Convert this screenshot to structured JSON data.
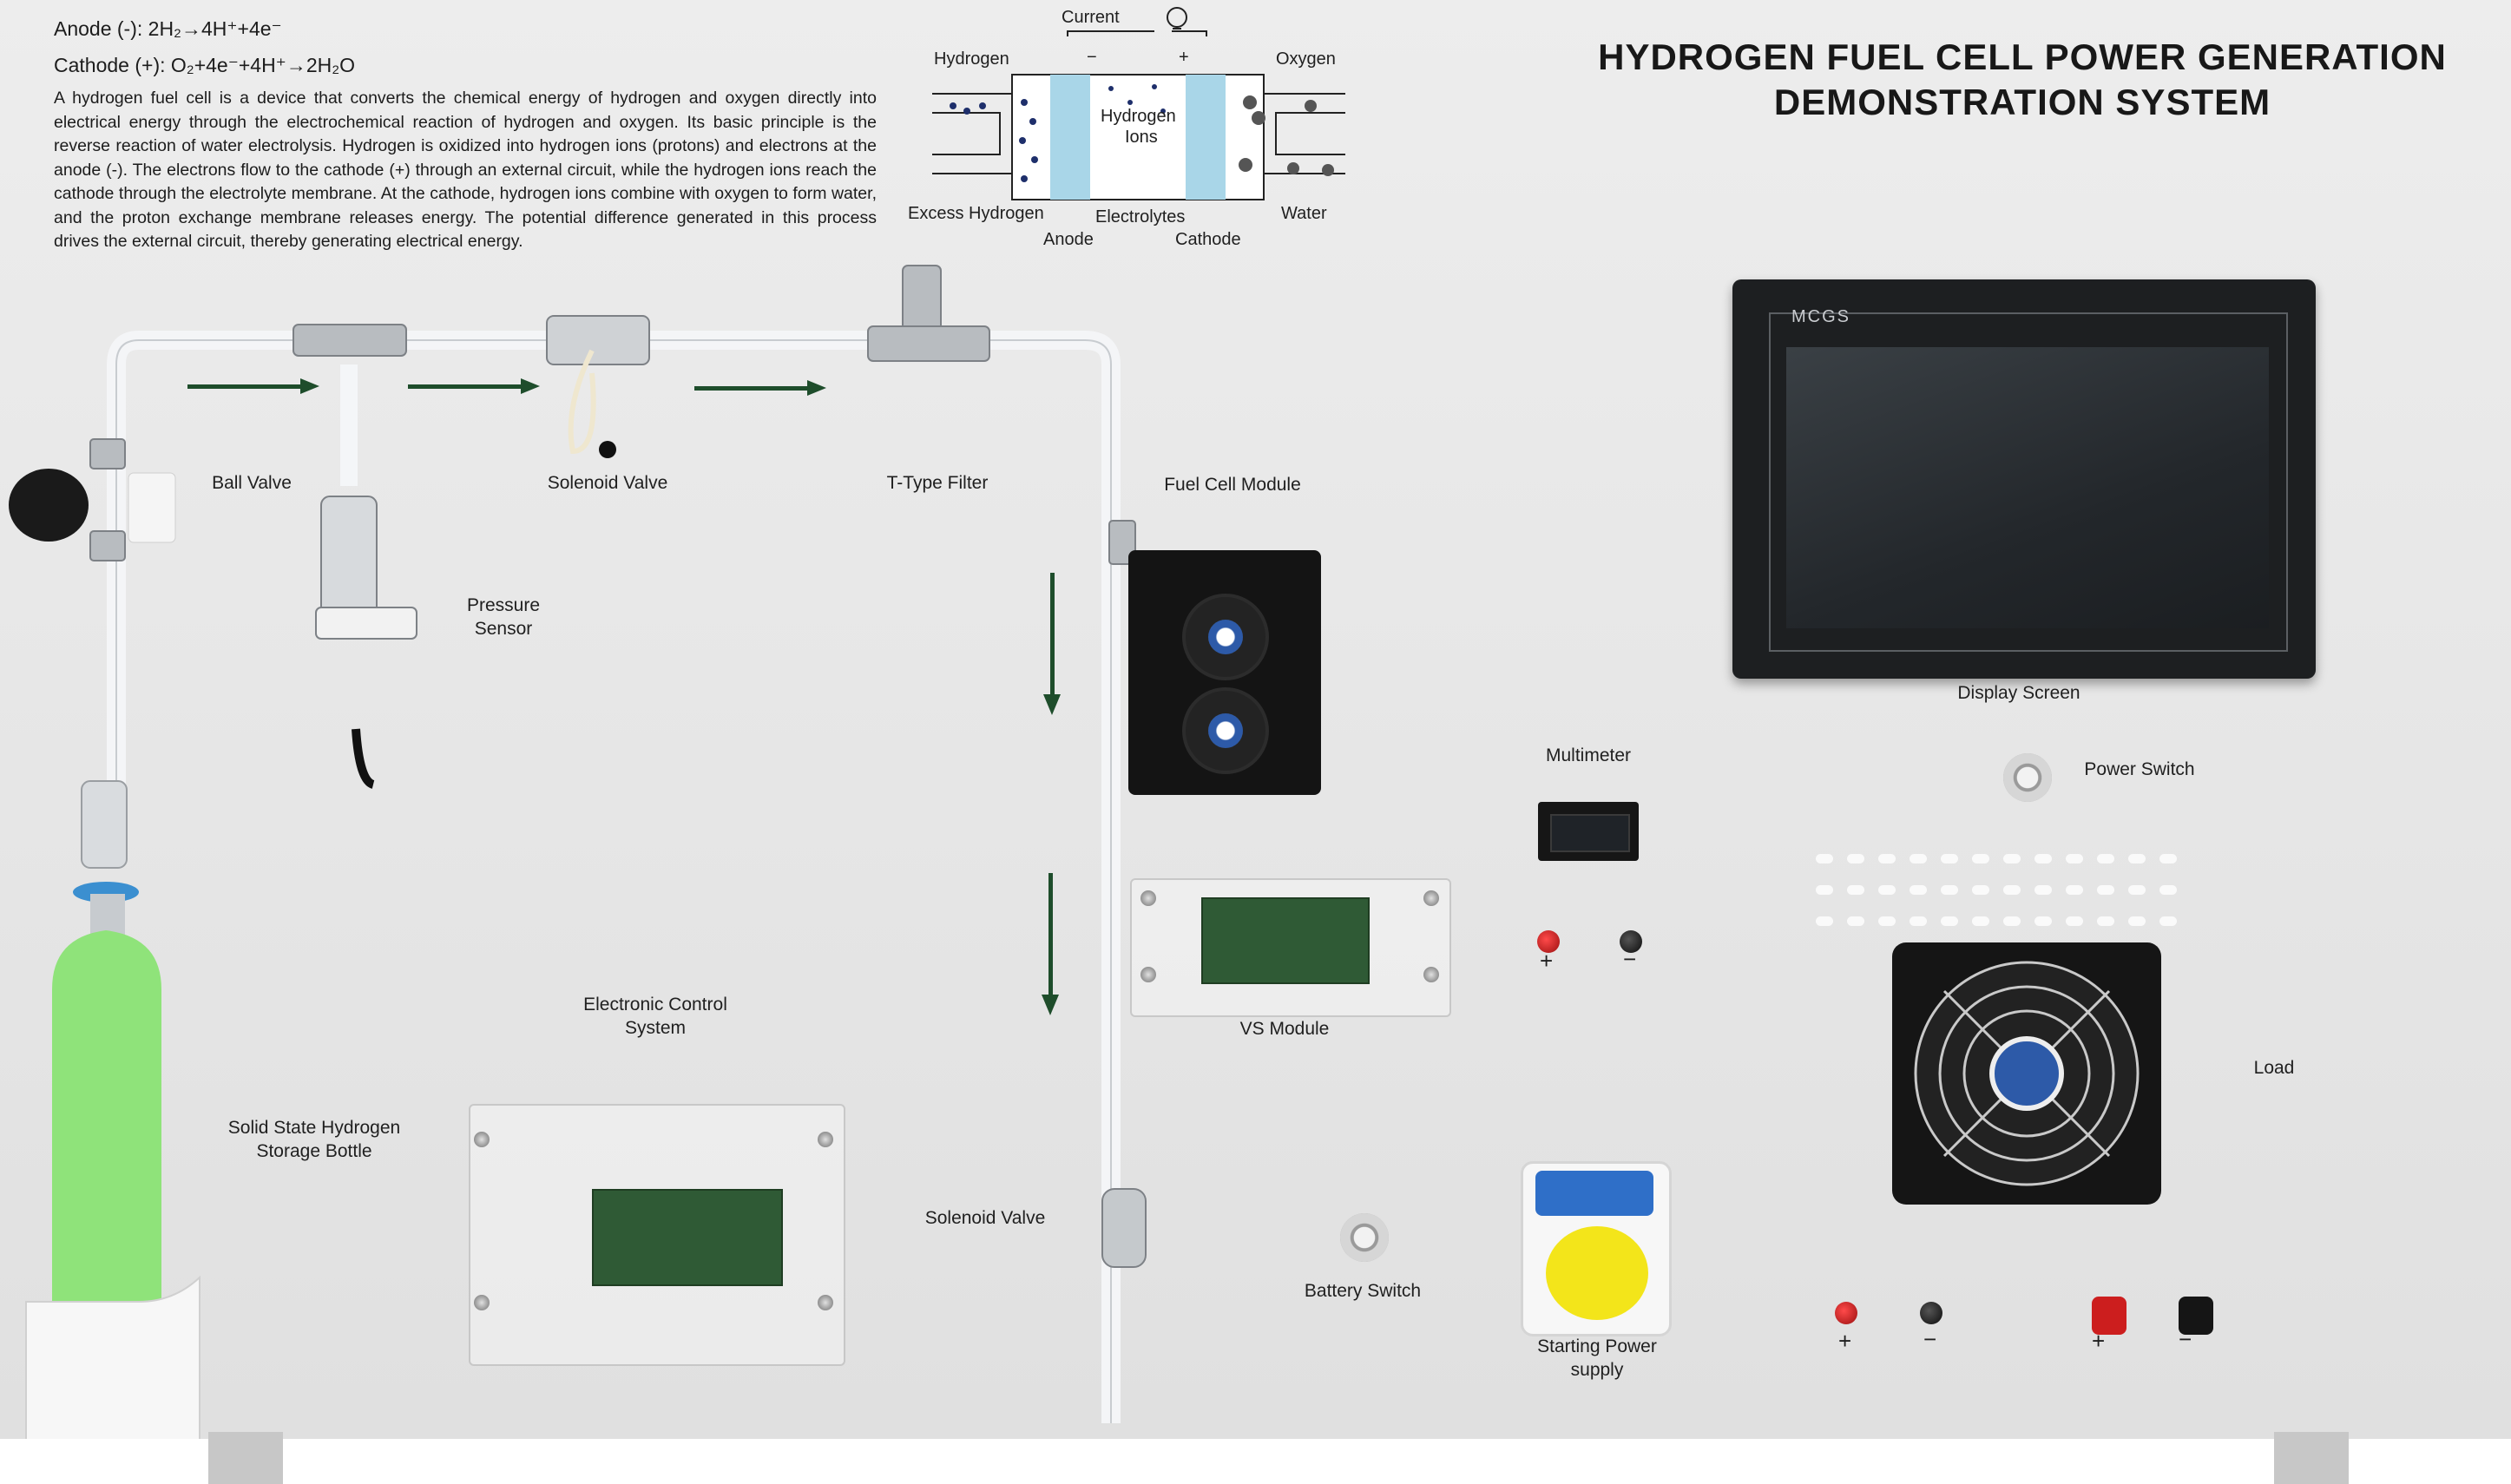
{
  "equations": {
    "anode": "Anode (-): 2H₂→4H⁺+4e⁻",
    "cathode": "Cathode (+): O₂+4e⁻+4H⁺→2H₂O"
  },
  "description": "A hydrogen fuel cell is a device that converts the chemical energy of hydrogen and oxygen directly into electrical energy through the electrochemical reaction of hydrogen and oxygen. Its basic principle is the reverse reaction of water electrolysis. Hydrogen is oxidized into hydrogen ions (protons) and electrons at the anode (-). The electrons flow to the cathode (+) through an external circuit, while the hydrogen ions reach the cathode through the electrolyte membrane. At the cathode, hydrogen ions combine with oxygen to form water, and the proton exchange membrane releases energy. The potential difference generated in this process drives the external circuit, thereby generating electrical energy.",
  "title_lines": [
    "HYDROGEN FUEL CELL POWER GENERATION",
    "DEMONSTRATION SYSTEM"
  ],
  "diagram": {
    "current": "Current",
    "hydrogen": "Hydrogen",
    "oxygen": "Oxygen",
    "minus": "−",
    "plus": "+",
    "hydrogen_ions": "Hydrogen",
    "ions": "Ions",
    "excess_hydrogen": "Excess Hydrogen",
    "electrolytes": "Electrolytes",
    "water": "Water",
    "anode": "Anode",
    "cathode": "Cathode"
  },
  "labels": {
    "ball_valve": "Ball Valve",
    "solenoid_valve_top": "Solenoid Valve",
    "t_type_filter": "T-Type Filter",
    "fuel_cell_module": "Fuel Cell Module",
    "pressure_sensor_1": "Pressure",
    "pressure_sensor_2": "Sensor",
    "display_screen": "Display Screen",
    "multimeter": "Multimeter",
    "power_switch": "Power Switch",
    "vs_module": "VS Module",
    "electronic_control_1": "Electronic Control",
    "electronic_control_2": "System",
    "storage_bottle_1": "Solid State Hydrogen",
    "storage_bottle_2": "Storage Bottle",
    "solenoid_valve_bottom": "Solenoid Valve",
    "battery_switch": "Battery Switch",
    "starting_power_1": "Starting Power",
    "starting_power_2": "supply",
    "load": "Load"
  },
  "display_brand": "MCGS",
  "terminals": {
    "plus": "+",
    "minus": "−"
  },
  "colors": {
    "bottle": "#8fe37a",
    "arrow": "#1e4d2b",
    "membrane": "#a9d6e8"
  }
}
